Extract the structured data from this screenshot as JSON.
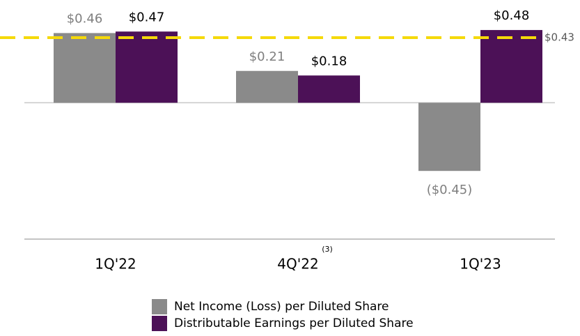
{
  "chart_data": {
    "type": "bar",
    "categories": [
      "1Q'22",
      "4Q'22",
      "1Q'23"
    ],
    "category_notes": [
      null,
      "(3)",
      null
    ],
    "series": [
      {
        "name": "Net Income (Loss) per Diluted Share",
        "color": "#8a8a8a",
        "label_color": "#7f7f7f",
        "values": [
          0.46,
          0.21,
          -0.45
        ],
        "value_labels": [
          "$0.46",
          "$0.21",
          "($0.45)"
        ]
      },
      {
        "name": "Distributable Earnings per Diluted Share",
        "color": "#4c1157",
        "label_color": "#000000",
        "values": [
          0.47,
          0.18,
          0.48
        ],
        "value_labels": [
          "$0.47",
          "$0.18",
          "$0.48"
        ]
      }
    ],
    "reference_line": {
      "value": 0.43,
      "label": "$0.43",
      "color": "#f5d90a"
    },
    "ylim": [
      -0.9,
      0.6
    ]
  }
}
